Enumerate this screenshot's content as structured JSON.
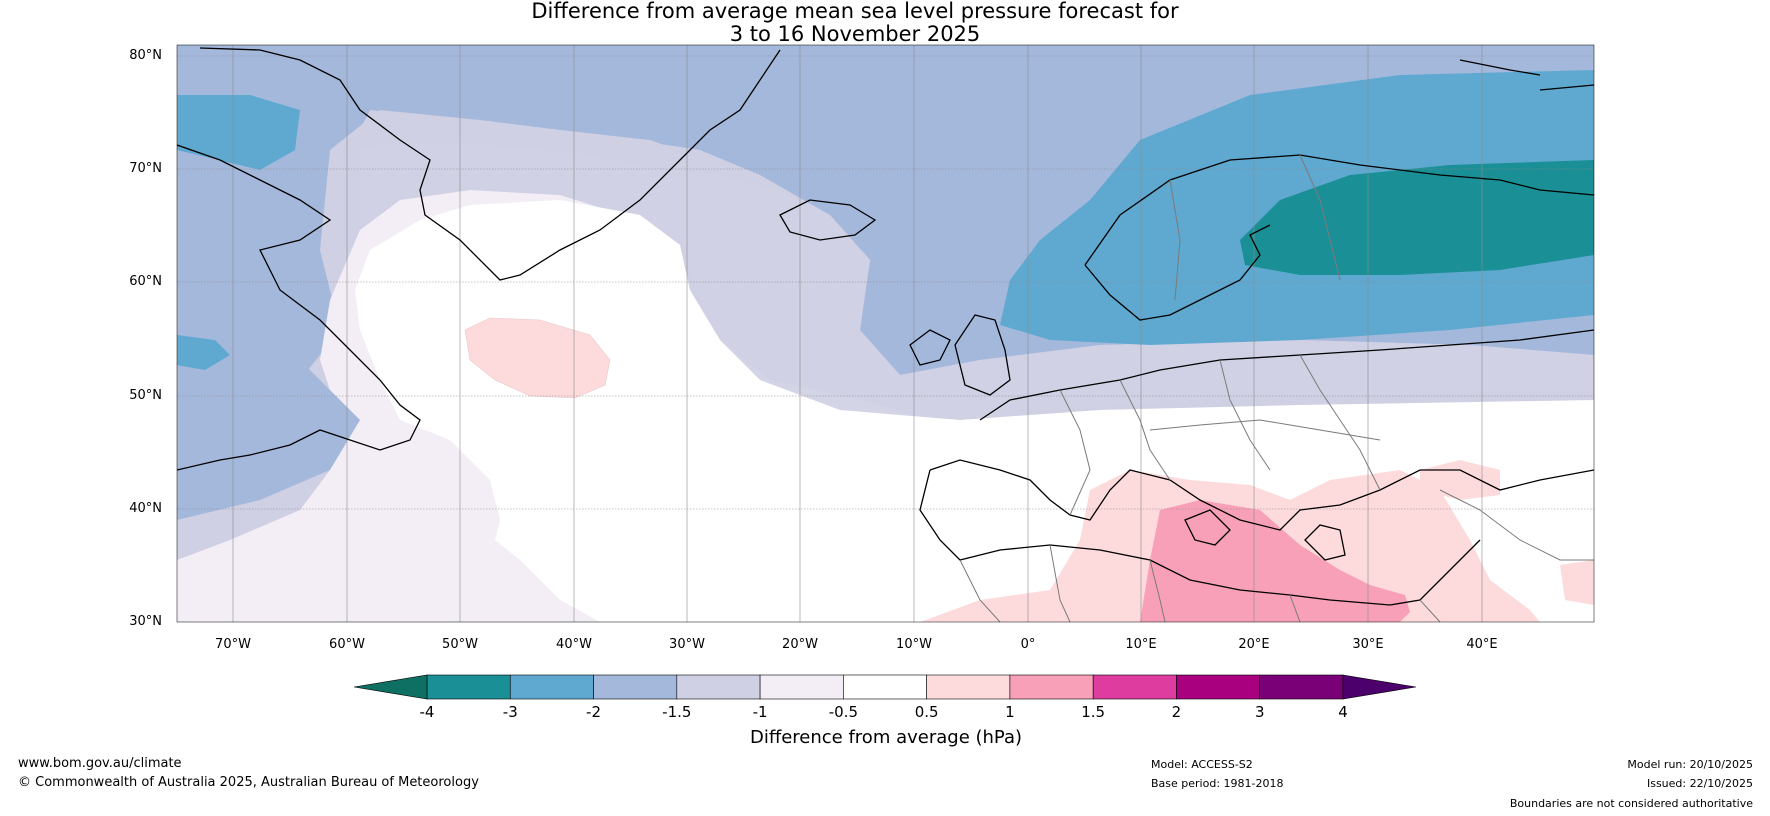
{
  "title": {
    "line1": "Difference from average mean sea level pressure forecast for",
    "line2": "3 to 16 November 2025"
  },
  "map": {
    "lat_labels": [
      "80°N",
      "70°N",
      "60°N",
      "50°N",
      "40°N",
      "30°N"
    ],
    "lon_labels": [
      "70°W",
      "60°W",
      "50°W",
      "40°W",
      "30°W",
      "20°W",
      "10°W",
      "0°",
      "10°E",
      "20°E",
      "30°E",
      "40°E"
    ],
    "lat_range": [
      30,
      81
    ],
    "lon_range": [
      -75,
      50
    ]
  },
  "colorbar": {
    "ticks": [
      "-4",
      "-3",
      "-2",
      "-1.5",
      "-1",
      "-0.5",
      "0.5",
      "1",
      "1.5",
      "2",
      "3",
      "4"
    ],
    "colors": [
      "#1b8f96",
      "#5fa9d0",
      "#a4b8dc",
      "#cfd0e4",
      "#f3eef6",
      "#ffffff",
      "#fddbdc",
      "#f8a0b8",
      "#de3c9e",
      "#a8007f",
      "#7a0077"
    ],
    "low_extend_color": "#0d7063",
    "high_extend_color": "#4b006b",
    "label": "Difference from average (hPa)"
  },
  "footer": {
    "website": "www.bom.gov.au/climate",
    "copyright": "© Commonwealth of Australia 2025, Australian Bureau of Meteorology",
    "model": "Model: ACCESS-S2",
    "base_period": "Base period: 1981-2018",
    "model_run": "Model run: 20/10/2025",
    "issued": "Issued: 22/10/2025",
    "disclaimer": "Boundaries are not considered authoritative"
  }
}
